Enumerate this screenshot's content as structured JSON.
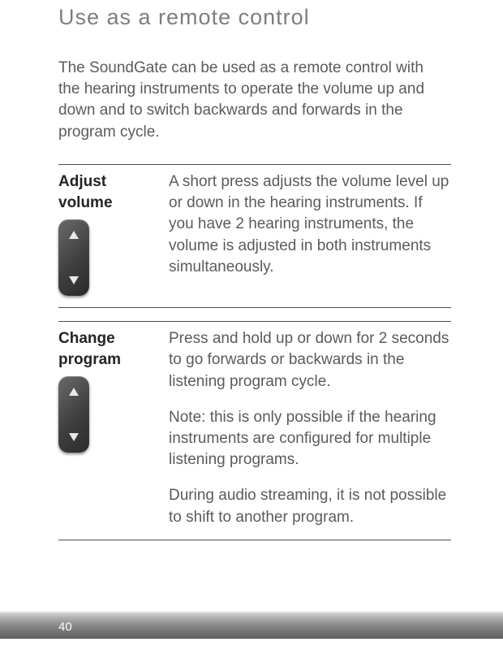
{
  "title": "Use as a remote control",
  "intro": "The SoundGate can be used as a remote control with the hearing instruments to operate the volume up and down and to switch backwards and forwards in the program cycle.",
  "rows": [
    {
      "label_line1": "Adjust",
      "label_line2": "volume",
      "paragraphs": [
        "A short press adjusts the volume level up or down in the hearing instruments. If you have 2 hearing instruments, the volume is adjusted in both instruments simultaneously."
      ]
    },
    {
      "label_line1": "Change",
      "label_line2": "program",
      "paragraphs": [
        "Press and hold up or down for 2 seconds to go forwards or backwards in the listening program cycle.",
        "Note: this is only possible if the hearing instruments are configured for multiple listening programs.",
        "During audio streaming, it is not possible to shift to another program."
      ]
    }
  ],
  "page_number": "40",
  "colors": {
    "title": "#7e7e7e",
    "body_text": "#5b5b5b",
    "label_text": "#242424",
    "rule": "#4f4f4f",
    "footer_text": "#ffffff"
  }
}
